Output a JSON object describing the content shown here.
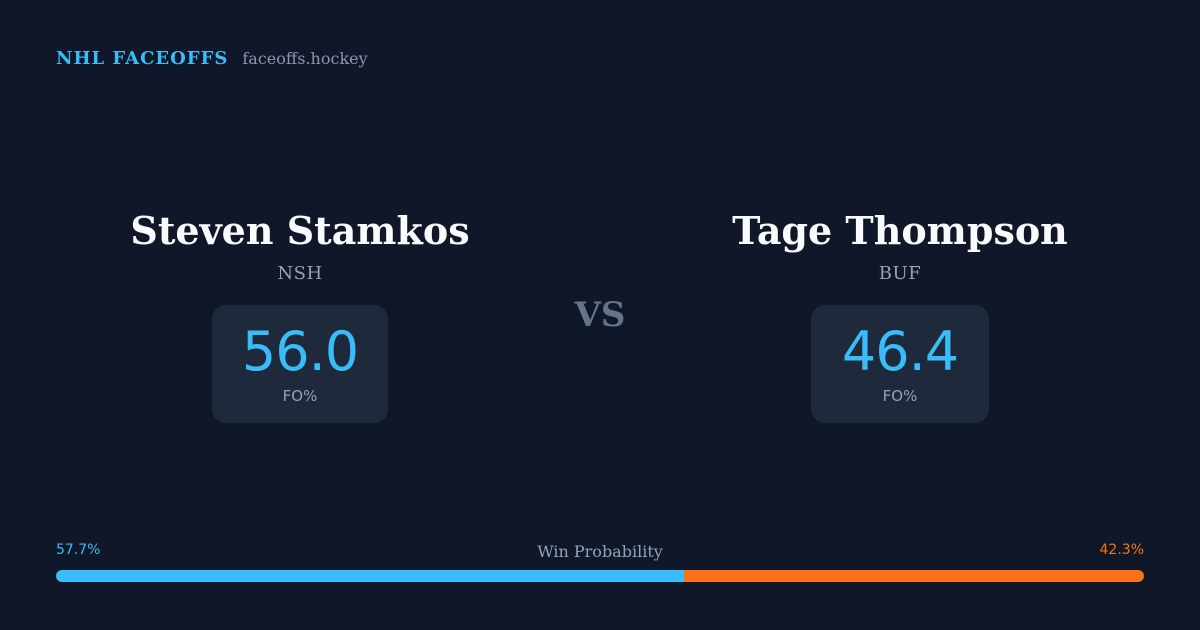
{
  "brand": {
    "title": "NHL FACEOFFS",
    "domain": "faceoffs.hockey"
  },
  "players": [
    {
      "name": "Steven Stamkos",
      "team": "NSH",
      "stat_value": "56.0",
      "stat_label": "FO%"
    },
    {
      "name": "Tage Thompson",
      "team": "BUF",
      "stat_value": "46.4",
      "stat_label": "FO%"
    }
  ],
  "vs_label": "VS",
  "win_probability": {
    "title": "Win Probability",
    "left_label": "57.7%",
    "right_label": "42.3%",
    "left_value": 57.7,
    "right_value": 42.3,
    "left_color": "#38bdf8",
    "right_color": "#f97316"
  },
  "colors": {
    "background": "#0f1729",
    "accent": "#38bdf8",
    "secondary_accent": "#f97316",
    "card": "#1e293b"
  }
}
